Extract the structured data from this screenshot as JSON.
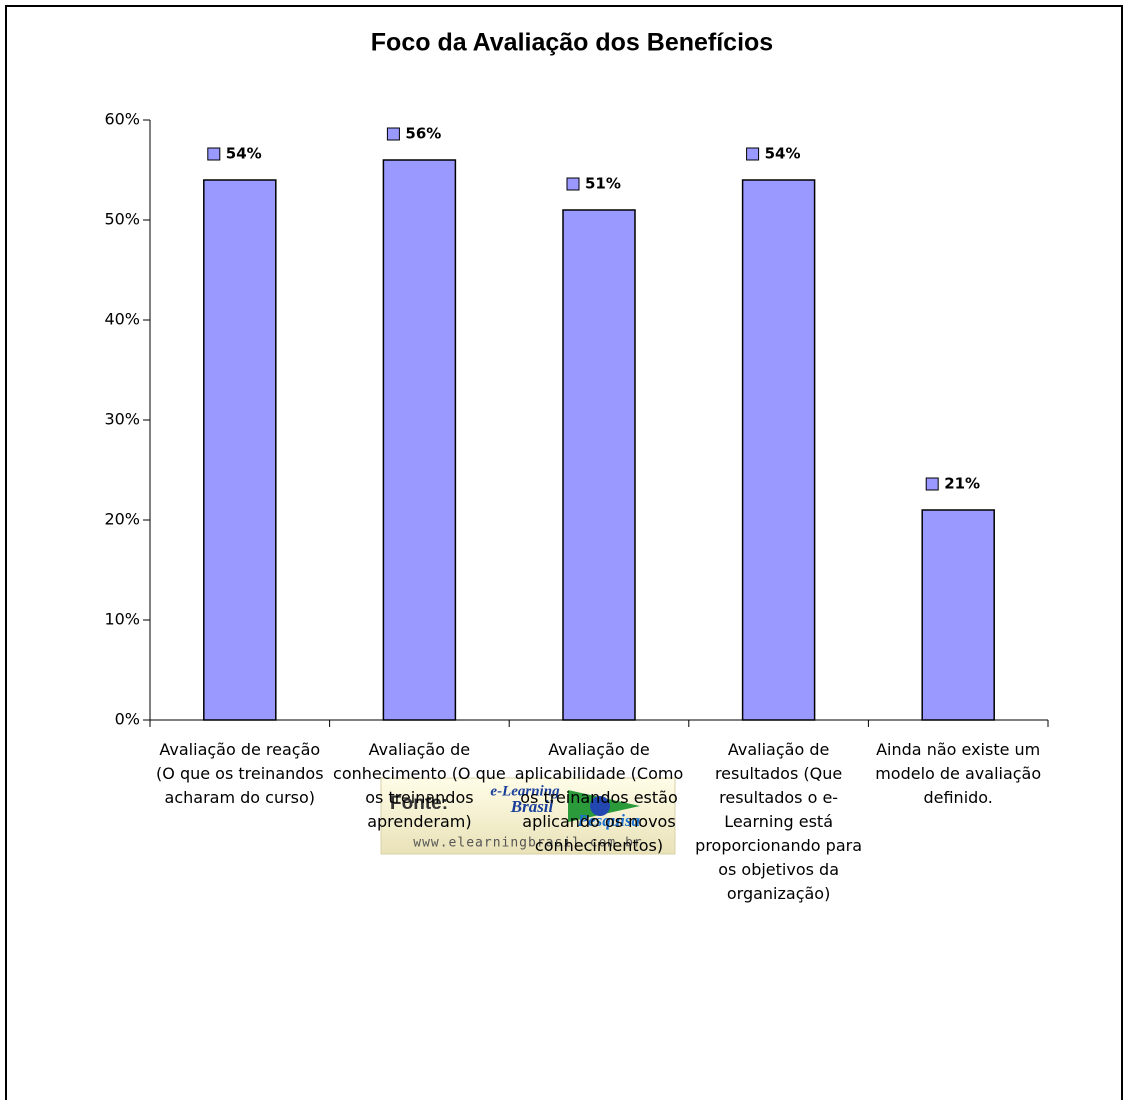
{
  "chart_data": {
    "type": "bar",
    "title": "Foco da Avaliação dos Benefícios",
    "categories": [
      "Avaliação de reação (O que os treinandos acharam do curso)",
      "Avaliação de conhecimento (O que os treinandos aprenderam)",
      "Avaliação de aplicabilidade (Como os treinandos estão aplicando os novos conhecimentos)",
      "Avaliação de resultados (Que resultados o e-Learning está proporcionando para os objetivos da organização)",
      "Ainda não existe um modelo de avaliação definido."
    ],
    "values": [
      54,
      56,
      51,
      54,
      21
    ],
    "value_labels": [
      "54%",
      "56%",
      "51%",
      "54%",
      "21%"
    ],
    "color": "#9999ff",
    "ylim": [
      0,
      60
    ],
    "yticks": [
      {
        "value": 0,
        "label": "0%"
      },
      {
        "value": 10,
        "label": "10%"
      },
      {
        "value": 20,
        "label": "20%"
      },
      {
        "value": 30,
        "label": "30%"
      },
      {
        "value": 40,
        "label": "40%"
      },
      {
        "value": 50,
        "label": "50%"
      },
      {
        "value": 60,
        "label": "60%"
      }
    ],
    "grid": false,
    "source": {
      "label": "Fonte:",
      "brand_top": "e-Learning",
      "brand_mid": "Brasil",
      "brand_sub": "Pesquisa",
      "url": "www.elearningbrasil.com.br"
    }
  }
}
